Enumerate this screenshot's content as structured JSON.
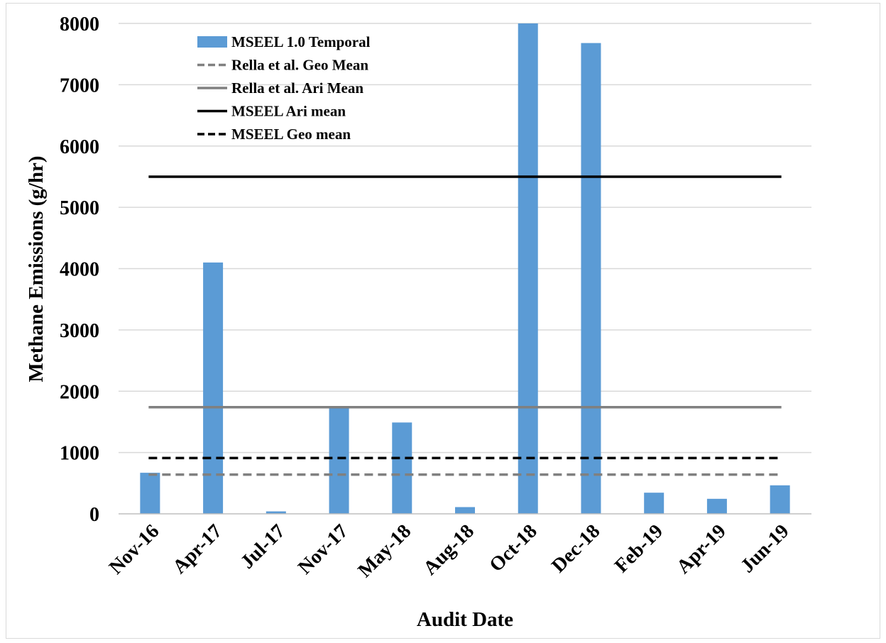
{
  "chart_data": {
    "type": "bar",
    "xlabel": "Audit Date",
    "ylabel": "Methane Emissions (g/hr)",
    "ylim": [
      0,
      8000
    ],
    "yticks": [
      0,
      1000,
      2000,
      3000,
      4000,
      5000,
      6000,
      7000,
      8000
    ],
    "grid": true,
    "legend_position": "top-left",
    "categories": [
      "Nov-16",
      "Apr-17",
      "Jul-17",
      "Nov-17",
      "May-18",
      "Aug-18",
      "Oct-18",
      "Dec-18",
      "Feb-19",
      "Apr-19",
      "Jun-19"
    ],
    "series": [
      {
        "name": "MSEEL 1.0 Temporal",
        "kind": "bar",
        "color": "#5b9bd5",
        "values": [
          670,
          4100,
          40,
          1750,
          1490,
          110,
          8000,
          7680,
          345,
          245,
          465
        ]
      }
    ],
    "reference_lines": [
      {
        "name": "Rella et al. Geo Mean",
        "value": 640,
        "color": "#808080",
        "style": "dashed"
      },
      {
        "name": "Rella et al. Ari Mean",
        "value": 1740,
        "color": "#808080",
        "style": "solid"
      },
      {
        "name": "MSEEL Ari mean",
        "value": 5500,
        "color": "#000000",
        "style": "solid"
      },
      {
        "name": "MSEEL Geo mean",
        "value": 910,
        "color": "#000000",
        "style": "dashed"
      }
    ],
    "colors": {
      "gridline": "#d9d9d9",
      "axis": "#bfbfbf"
    }
  }
}
